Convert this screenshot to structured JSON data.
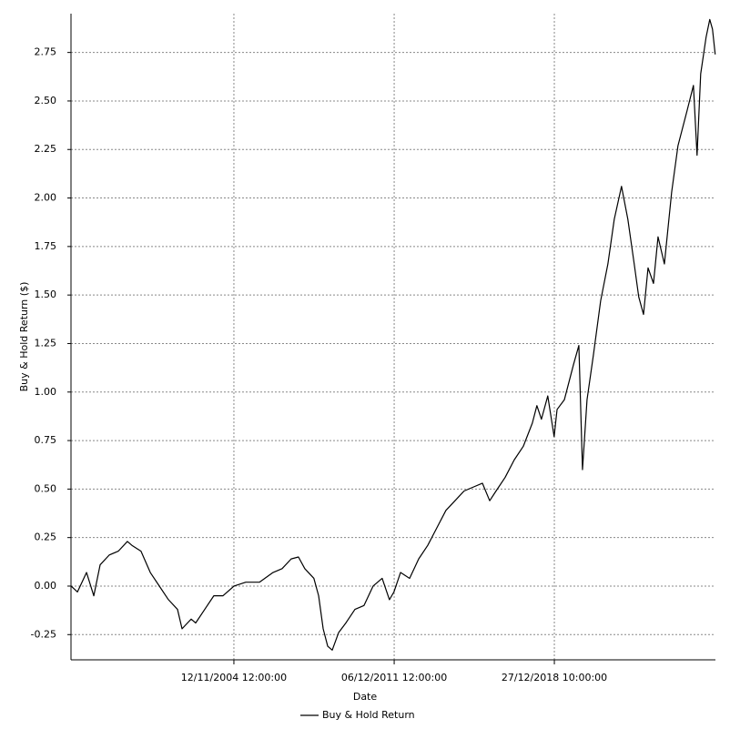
{
  "chart_data": {
    "type": "line",
    "x_label": "Date",
    "y_label": "Buy & Hold Return ($)",
    "xlim": [
      1997.685,
      2026.09
    ],
    "xticks": [
      {
        "value": 2004.865,
        "label": "12/11/2004 12:00:00"
      },
      {
        "value": 2011.93,
        "label": "06/12/2011 12:00:00"
      },
      {
        "value": 2018.99,
        "label": "27/12/2018 10:00:00"
      }
    ],
    "ylim": [
      -0.38,
      2.95
    ],
    "yticks": [
      {
        "value": -0.25,
        "label": "-0.25"
      },
      {
        "value": 0,
        "label": "0.00"
      },
      {
        "value": 0.25,
        "label": "0.25"
      },
      {
        "value": 0.5,
        "label": "0.50"
      },
      {
        "value": 0.75,
        "label": "0.75"
      },
      {
        "value": 1,
        "label": "1.00"
      },
      {
        "value": 1.25,
        "label": "1.25"
      },
      {
        "value": 1.5,
        "label": "1.50"
      },
      {
        "value": 1.75,
        "label": "1.75"
      },
      {
        "value": 2,
        "label": "2.00"
      },
      {
        "value": 2.25,
        "label": "2.25"
      },
      {
        "value": 2.5,
        "label": "2.50"
      },
      {
        "value": 2.75,
        "label": "2.75"
      }
    ],
    "grid": true,
    "legend": "bottom",
    "series": [
      {
        "name": "Buy & Hold Return",
        "color": "#000000",
        "x": [
          1997.69,
          1997.97,
          1998.37,
          1998.69,
          1998.97,
          1999.37,
          1999.77,
          2000.17,
          2000.37,
          2000.77,
          2001.18,
          2001.58,
          2001.98,
          2002.38,
          2002.58,
          2002.98,
          2003.18,
          2003.58,
          2003.98,
          2004.38,
          2004.87,
          2005.39,
          2005.99,
          2006.59,
          2006.99,
          2007.39,
          2007.71,
          2007.99,
          2008.39,
          2008.6,
          2008.8,
          2009.0,
          2009.2,
          2009.48,
          2009.8,
          2010.2,
          2010.6,
          2011.0,
          2011.4,
          2011.72,
          2011.92,
          2012.21,
          2012.61,
          2013.01,
          2013.41,
          2013.81,
          2014.21,
          2014.61,
          2015.01,
          2015.41,
          2015.82,
          2016.14,
          2016.42,
          2016.82,
          2017.22,
          2017.62,
          2018.02,
          2018.22,
          2018.42,
          2018.7,
          2018.98,
          2019.11,
          2019.43,
          2019.83,
          2020.07,
          2020.23,
          2020.43,
          2020.71,
          2021.03,
          2021.35,
          2021.63,
          2021.95,
          2022.23,
          2022.51,
          2022.71,
          2022.92,
          2023.12,
          2023.36,
          2023.56,
          2023.84,
          2024.16,
          2024.44,
          2024.84,
          2025.12,
          2025.28,
          2025.44,
          2025.68,
          2025.84,
          2025.96,
          2026.08
        ],
        "values": [
          0.0,
          -0.03,
          0.07,
          -0.05,
          0.11,
          0.16,
          0.18,
          0.23,
          0.21,
          0.18,
          0.07,
          0.0,
          -0.07,
          -0.12,
          -0.22,
          -0.17,
          -0.19,
          -0.12,
          -0.05,
          -0.05,
          0.0,
          0.02,
          0.02,
          0.07,
          0.09,
          0.14,
          0.15,
          0.09,
          0.04,
          -0.05,
          -0.22,
          -0.31,
          -0.33,
          -0.24,
          -0.19,
          -0.12,
          -0.1,
          0.0,
          0.04,
          -0.07,
          -0.03,
          0.07,
          0.04,
          0.14,
          0.21,
          0.3,
          0.39,
          0.44,
          0.49,
          0.51,
          0.53,
          0.44,
          0.49,
          0.56,
          0.65,
          0.72,
          0.84,
          0.93,
          0.86,
          0.98,
          0.77,
          0.91,
          0.96,
          1.14,
          1.24,
          0.6,
          0.96,
          1.19,
          1.47,
          1.66,
          1.89,
          2.06,
          1.89,
          1.66,
          1.49,
          1.4,
          1.64,
          1.56,
          1.8,
          1.66,
          2.03,
          2.27,
          2.45,
          2.58,
          2.22,
          2.64,
          2.83,
          2.92,
          2.87,
          2.74
        ]
      }
    ]
  }
}
